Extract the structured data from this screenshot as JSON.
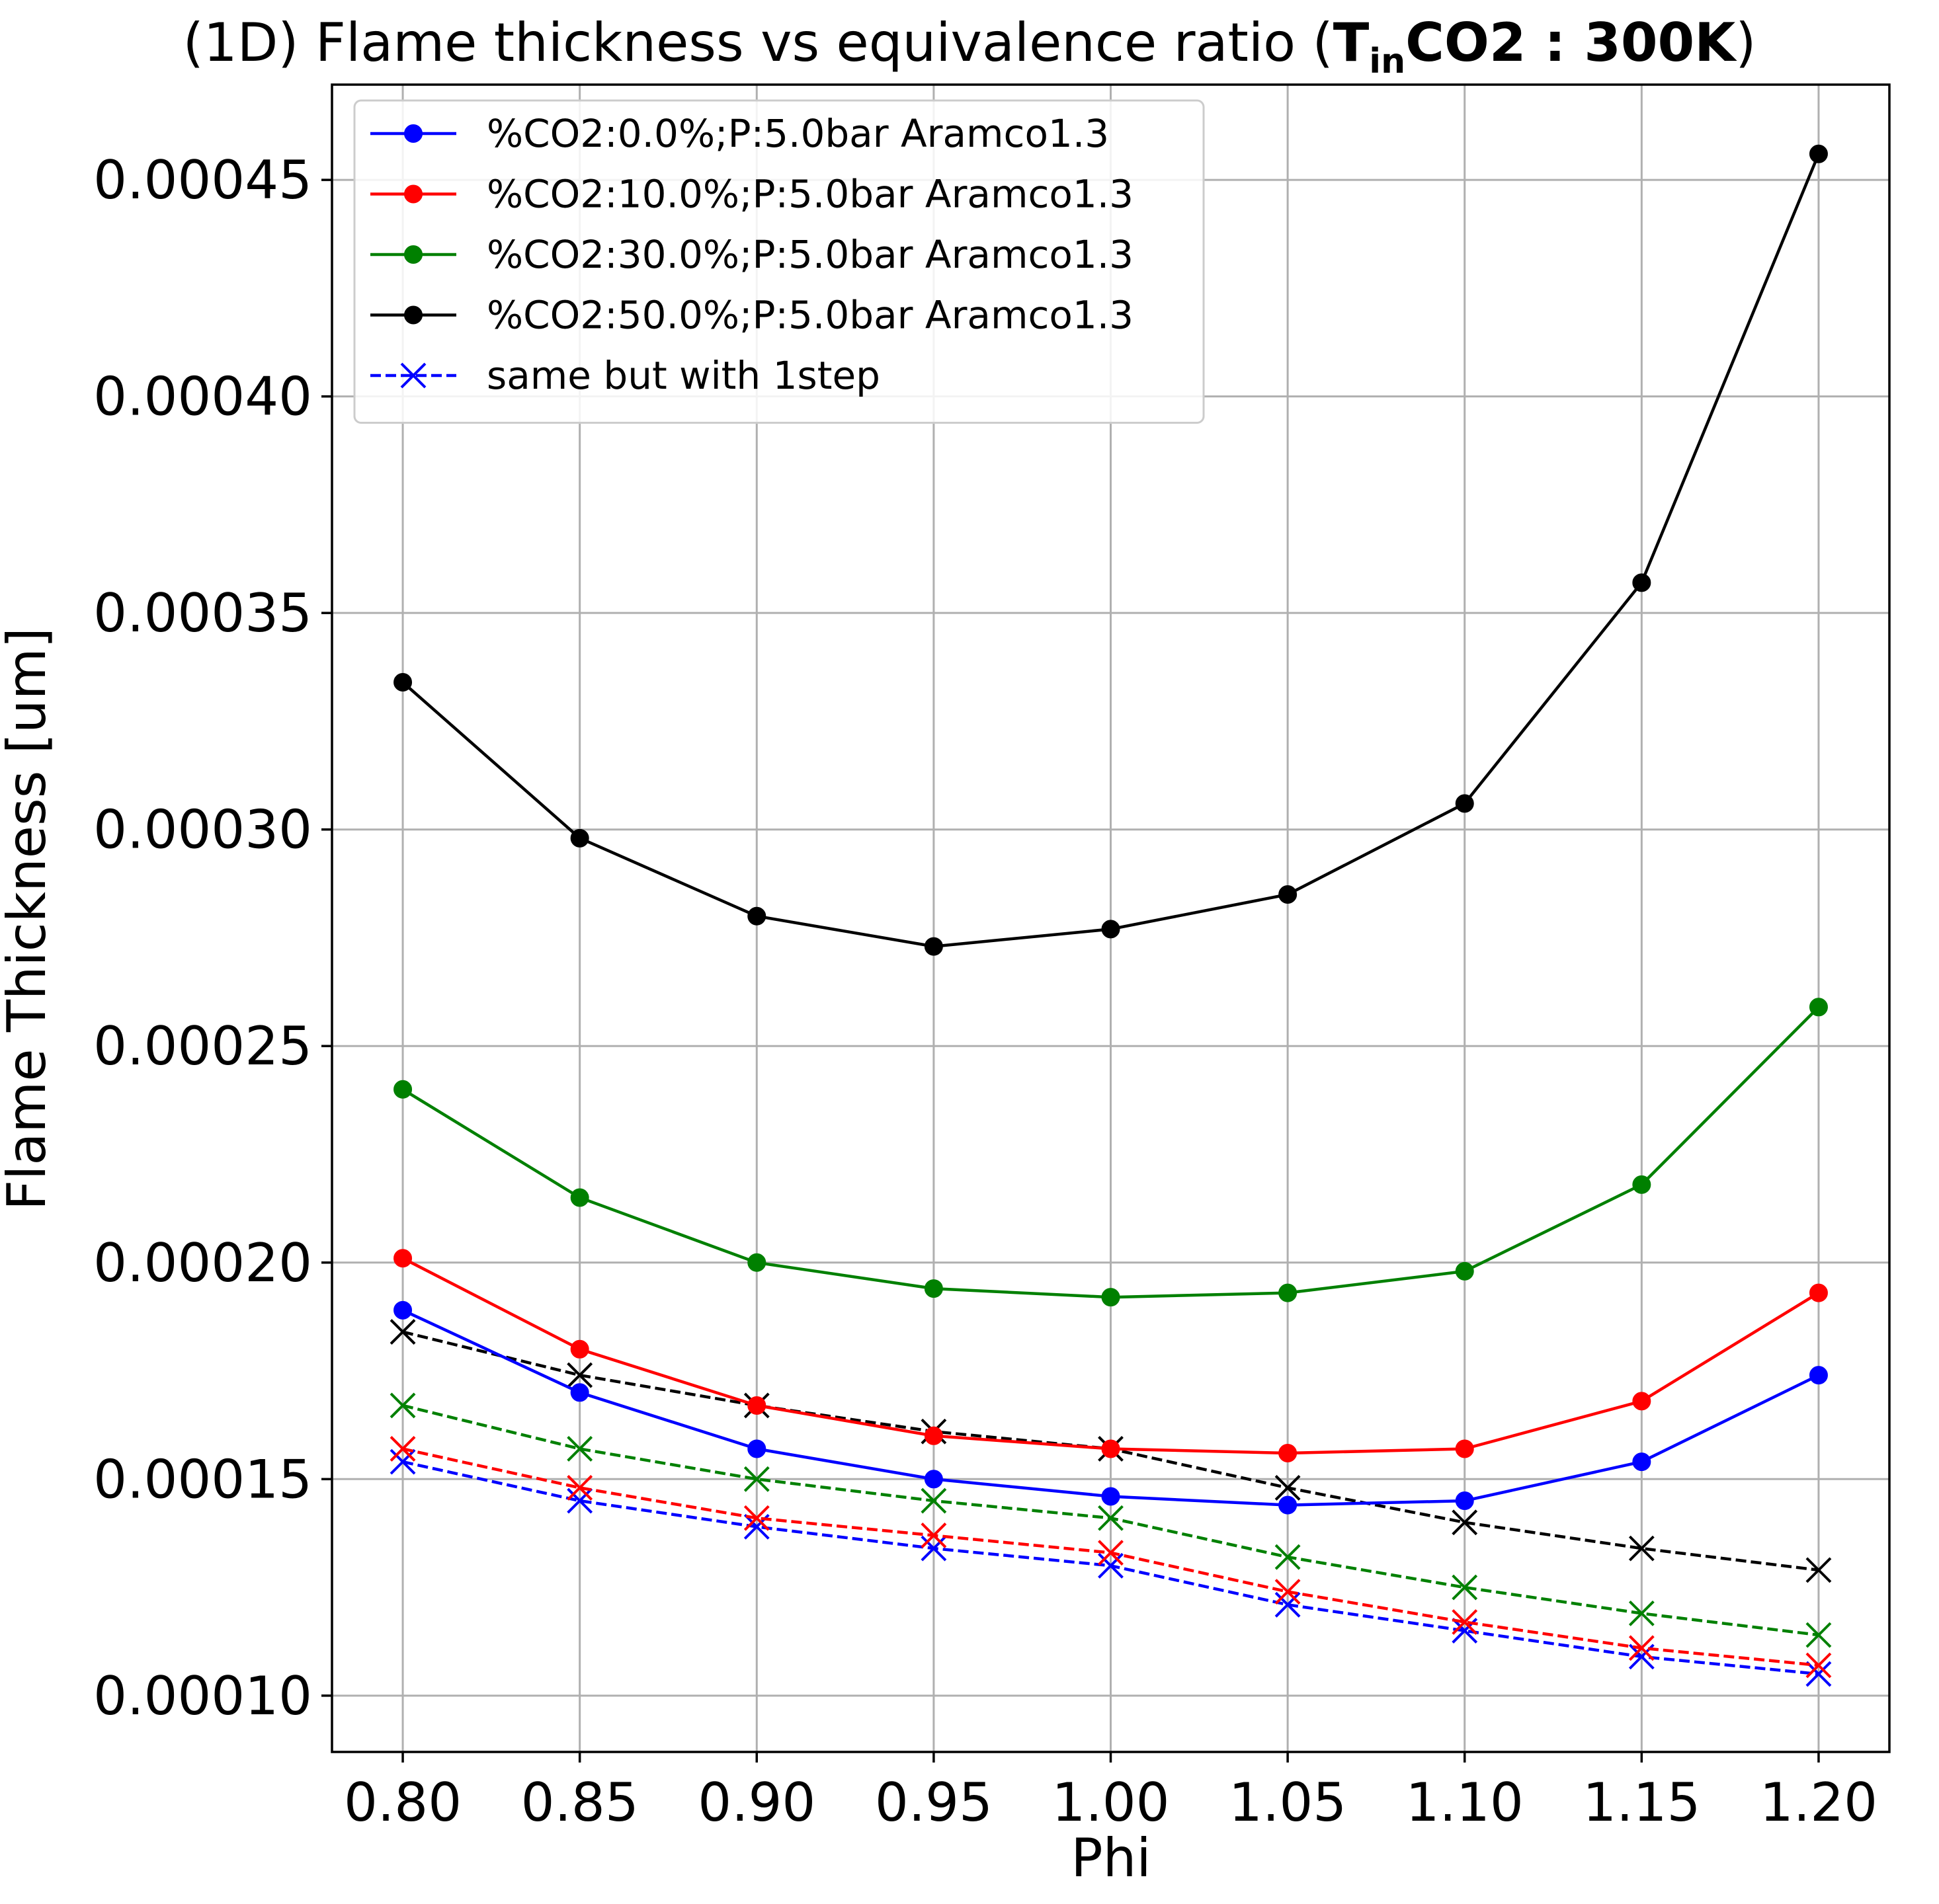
{
  "chart_data": {
    "type": "line",
    "title_prefix": "(1D) Flame thickness vs equivalence ratio (",
    "title_bold_T": "T",
    "title_bold_sub": "in",
    "title_bold_rest": "CO2 : 300K",
    "title_suffix": ")",
    "xlabel": "Phi",
    "ylabel": "Flame Thickness [um]",
    "x": [
      0.8,
      0.85,
      0.9,
      0.95,
      1.0,
      1.05,
      1.1,
      1.15,
      1.2
    ],
    "xlim": [
      0.78,
      1.22
    ],
    "ylim": [
      8.7e-05,
      0.000472
    ],
    "x_ticks": [
      0.8,
      0.85,
      0.9,
      0.95,
      1.0,
      1.05,
      1.1,
      1.15,
      1.2
    ],
    "x_tick_labels": [
      "0.80",
      "0.85",
      "0.90",
      "0.95",
      "1.00",
      "1.05",
      "1.10",
      "1.15",
      "1.20"
    ],
    "y_ticks": [
      0.0001,
      0.00015,
      0.0002,
      0.00025,
      0.0003,
      0.00035,
      0.0004,
      0.00045
    ],
    "y_tick_labels": [
      "0.00010",
      "0.00015",
      "0.00020",
      "0.00025",
      "0.00030",
      "0.00035",
      "0.00040",
      "0.00045"
    ],
    "grid": true,
    "legend_position": "top-left",
    "series": [
      {
        "name": "%CO2:0.0%;P:5.0bar Aramco1.3",
        "color": "#0000ff",
        "style": "solid",
        "marker": "circle",
        "values": [
          0.000189,
          0.00017,
          0.000157,
          0.00015,
          0.000146,
          0.000144,
          0.000145,
          0.000154,
          0.000174
        ]
      },
      {
        "name": "%CO2:10.0%;P:5.0bar Aramco1.3",
        "color": "#ff0000",
        "style": "solid",
        "marker": "circle",
        "values": [
          0.000201,
          0.00018,
          0.000167,
          0.00016,
          0.000157,
          0.000156,
          0.000157,
          0.000168,
          0.000193
        ]
      },
      {
        "name": "%CO2:30.0%;P:5.0bar Aramco1.3",
        "color": "#008000",
        "style": "solid",
        "marker": "circle",
        "values": [
          0.00024,
          0.000215,
          0.0002,
          0.000194,
          0.000192,
          0.000193,
          0.000198,
          0.000218,
          0.000259
        ]
      },
      {
        "name": "%CO2:50.0%;P:5.0bar Aramco1.3",
        "color": "#000000",
        "style": "solid",
        "marker": "circle",
        "values": [
          0.000334,
          0.000298,
          0.00028,
          0.000273,
          0.000277,
          0.000285,
          0.000306,
          0.000357,
          0.000456
        ]
      },
      {
        "name": "same but with 1step",
        "color": "#0000ff",
        "style": "dashed",
        "marker": "x",
        "values": [
          0.000154,
          0.000145,
          0.000139,
          0.000134,
          0.00013,
          0.000121,
          0.000115,
          0.000109,
          0.000105
        ]
      },
      {
        "color": "#ff0000",
        "style": "dashed",
        "marker": "x",
        "values": [
          0.000157,
          0.000148,
          0.000141,
          0.000137,
          0.000133,
          0.000124,
          0.000117,
          0.000111,
          0.000107
        ]
      },
      {
        "color": "#008000",
        "style": "dashed",
        "marker": "x",
        "values": [
          0.000167,
          0.000157,
          0.00015,
          0.000145,
          0.000141,
          0.000132,
          0.000125,
          0.000119,
          0.000114
        ]
      },
      {
        "color": "#000000",
        "style": "dashed",
        "marker": "x",
        "values": [
          0.000184,
          0.000174,
          0.000167,
          0.000161,
          0.000157,
          0.000148,
          0.00014,
          0.000134,
          0.000129
        ]
      }
    ]
  }
}
